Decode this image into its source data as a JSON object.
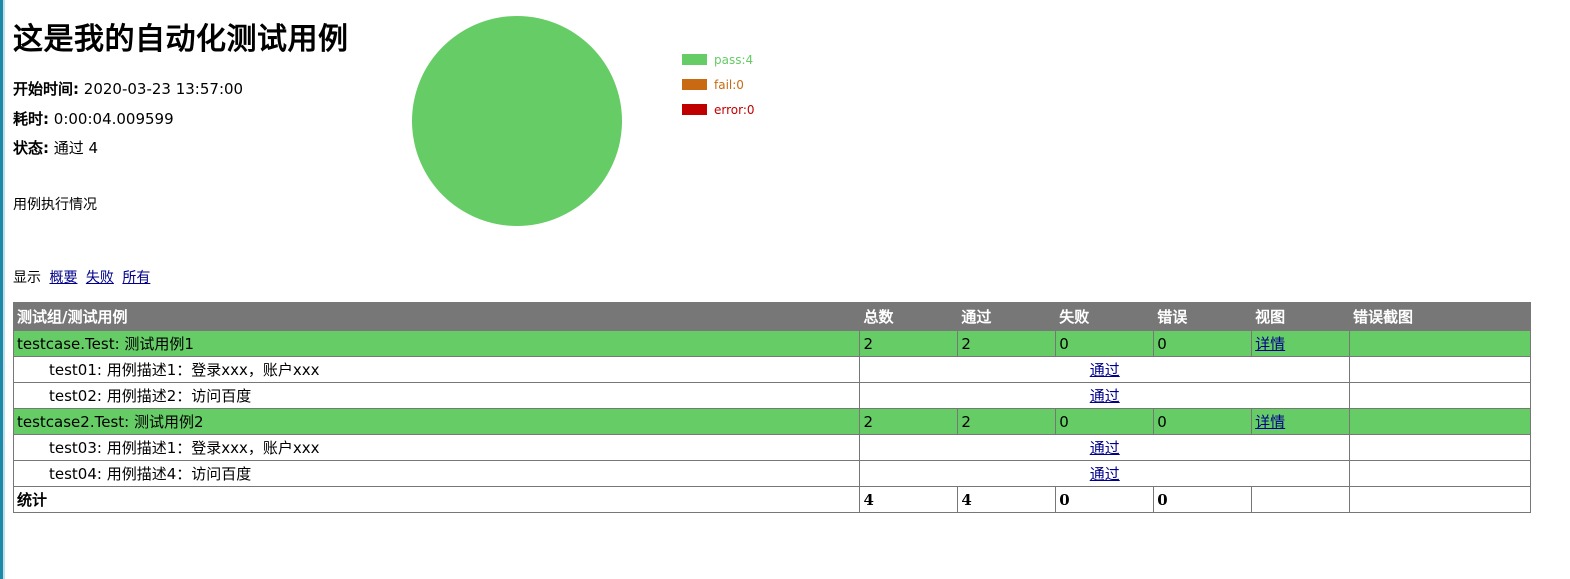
{
  "report": {
    "title": "这是我的自动化测试用例",
    "start_label": "开始时间:",
    "start_value": "2020-03-23 13:57:00",
    "duration_label": "耗时:",
    "duration_value": "0:00:04.009599",
    "status_label": "状态:",
    "status_value": "通过 4",
    "description": "用例执行情况"
  },
  "filter": {
    "label": "显示",
    "summary": "概要",
    "failed": "失败",
    "all": "所有"
  },
  "chart_data": {
    "type": "pie",
    "categories": [
      "pass",
      "fail",
      "error"
    ],
    "values": [
      4,
      0,
      0
    ],
    "legend": [
      "pass:4",
      "fail:0",
      "error:0"
    ],
    "colors": [
      "#66cc66",
      "#c96a12",
      "#c00000"
    ],
    "legend_position": "right"
  },
  "table": {
    "headers": [
      "测试组/测试用例",
      "总数",
      "通过",
      "失败",
      "错误",
      "视图",
      "错误截图"
    ],
    "groups": [
      {
        "name": "testcase.Test: 测试用例1",
        "total": "2",
        "pass": "2",
        "fail": "0",
        "error": "0",
        "view": "详情",
        "cases": [
          {
            "name": "test01: 用例描述1：登录xxx，账户xxx",
            "status": "通过"
          },
          {
            "name": "test02: 用例描述2：访问百度",
            "status": "通过"
          }
        ]
      },
      {
        "name": "testcase2.Test: 测试用例2",
        "total": "2",
        "pass": "2",
        "fail": "0",
        "error": "0",
        "view": "详情",
        "cases": [
          {
            "name": "test03: 用例描述1：登录xxx，账户xxx",
            "status": "通过"
          },
          {
            "name": "test04: 用例描述4：访问百度",
            "status": "通过"
          }
        ]
      }
    ],
    "total": {
      "label": "统计",
      "total": "4",
      "pass": "4",
      "fail": "0",
      "error": "0"
    }
  }
}
